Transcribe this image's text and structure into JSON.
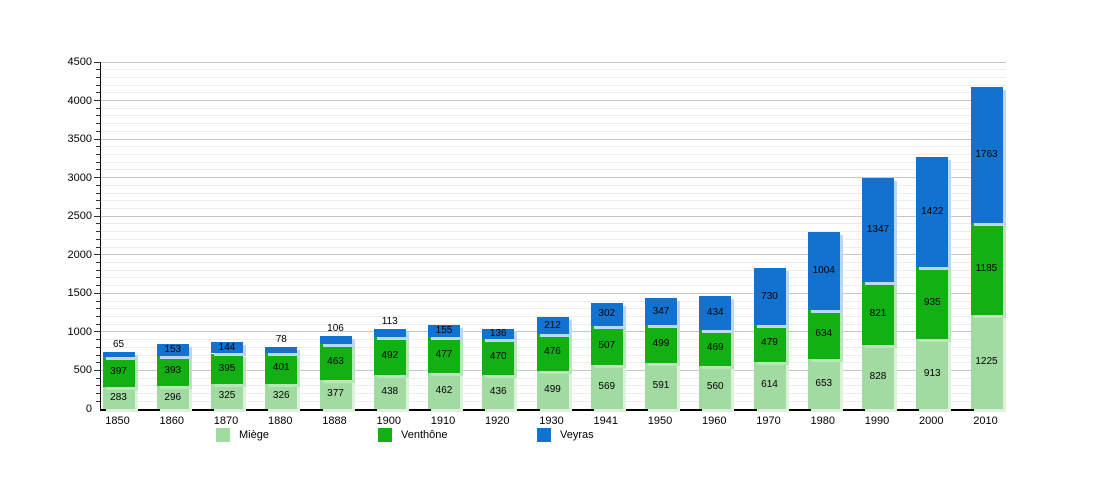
{
  "chart_data": {
    "type": "bar",
    "stacked": true,
    "categories": [
      "1850",
      "1860",
      "1870",
      "1880",
      "1888",
      "1900",
      "1910",
      "1920",
      "1930",
      "1941",
      "1950",
      "1960",
      "1970",
      "1980",
      "1990",
      "2000",
      "2010"
    ],
    "series": [
      {
        "name": "Miège",
        "color": "#a2dba2",
        "shadow": "#ddf2dd",
        "values": [
          283,
          296,
          325,
          326,
          377,
          438,
          462,
          436,
          499,
          569,
          591,
          560,
          614,
          653,
          828,
          913,
          1225
        ]
      },
      {
        "name": "Venthône",
        "color": "#12b012",
        "shadow": "#b9e6b9",
        "values": [
          397,
          393,
          395,
          401,
          463,
          492,
          477,
          470,
          476,
          507,
          499,
          469,
          479,
          634,
          821,
          935,
          1185
        ]
      },
      {
        "name": "Veyras",
        "color": "#1272d0",
        "shadow": "#bdd7f2",
        "values": [
          65,
          153,
          144,
          78,
          106,
          113,
          155,
          136,
          212,
          302,
          347,
          434,
          730,
          1004,
          1347,
          1422,
          1763
        ]
      }
    ],
    "ylim": [
      0,
      4500
    ],
    "ytick_major": 500,
    "ytick_minor": 100,
    "grid": true,
    "legend_position": "bottom",
    "value_labels": true
  },
  "colors": {
    "background": "#ffffff",
    "axis": "#000000",
    "grid_minor": "#ececec",
    "grid_major": "#c6c6c6",
    "label_text": "#000000"
  }
}
